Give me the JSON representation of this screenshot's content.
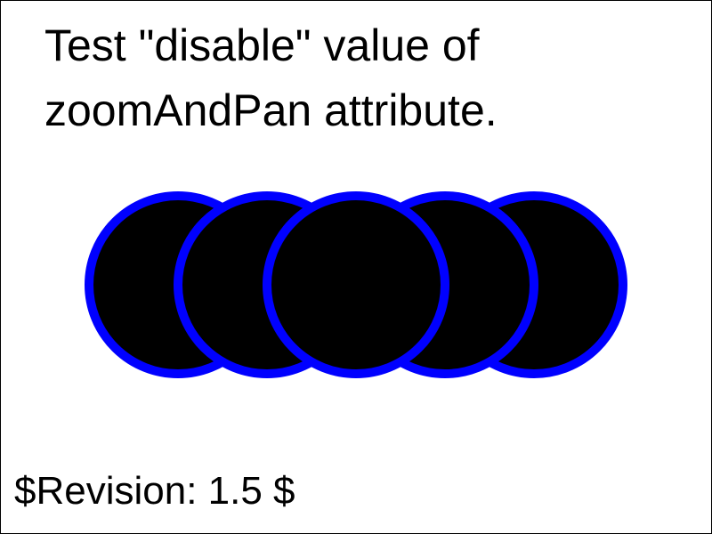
{
  "title_lines": [
    "Test \"disable\" value of",
    "zoomAndPan attribute."
  ],
  "revision": "$Revision: 1.5 $",
  "circle_count": 5,
  "colors": {
    "circle_fill": "#000000",
    "circle_stroke": "#0000ff",
    "frame": "#000000",
    "background": "#ffffff",
    "text": "#000000"
  }
}
